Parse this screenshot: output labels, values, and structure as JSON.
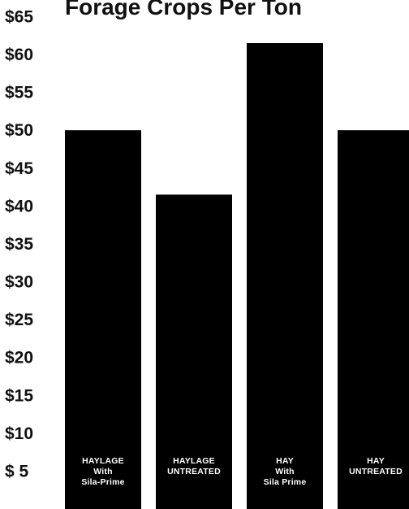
{
  "chart_data": {
    "type": "bar",
    "title": "Forage Crops Per Ton",
    "xlabel": "",
    "ylabel": "",
    "ylim": [
      0,
      65
    ],
    "y_ticks": [
      5,
      10,
      15,
      20,
      25,
      30,
      35,
      40,
      45,
      50,
      55,
      60,
      65
    ],
    "y_tick_labels": [
      "$ 5",
      "$10",
      "$15",
      "$20",
      "$25",
      "$30",
      "$35",
      "$40",
      "$45",
      "$50",
      "$55",
      "$60",
      "$65"
    ],
    "grid": false,
    "legend": "none",
    "categories": [
      "HAYLAGE With Sila-Prime",
      "HAYLAGE UNTREATED",
      "HAY With Sila Prime",
      "HAY UNTREATED"
    ],
    "category_label_lines": [
      [
        "HAYLAGE",
        "With",
        "Sila-Prime"
      ],
      [
        "HAYLAGE",
        "UNTREATED"
      ],
      [
        "HAY",
        "With",
        "Sila Prime"
      ],
      [
        "HAY",
        "UNTREATED"
      ]
    ],
    "values": [
      50,
      41.5,
      61.5,
      50
    ],
    "colors": {
      "bar": "#000000",
      "background": "#ffffff",
      "text": "#111111",
      "bar_label": "#ffffff"
    }
  }
}
